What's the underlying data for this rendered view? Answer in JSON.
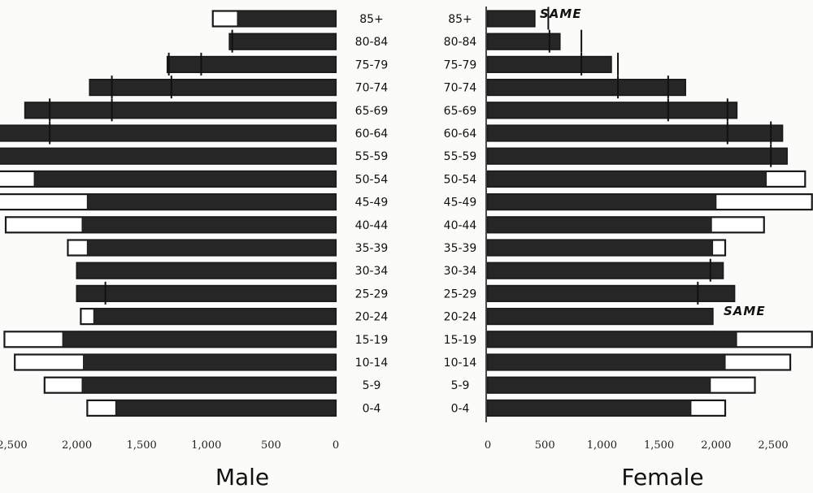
{
  "chart_data": [
    {
      "type": "bar",
      "title": "Male",
      "orientation": "horizontal",
      "direction": "leftward",
      "categories": [
        "85+",
        "80-84",
        "75-79",
        "70-74",
        "65-69",
        "60-64",
        "55-59",
        "50-54",
        "45-49",
        "40-44",
        "35-39",
        "30-34",
        "25-29",
        "20-24",
        "15-19",
        "10-14",
        "5-9",
        "0-4"
      ],
      "xticks": [
        "2,500",
        "2,000",
        "1,500",
        "1,000",
        "500",
        "0"
      ],
      "xlim": [
        0,
        2900
      ],
      "series": [
        {
          "style": "filled",
          "values": [
            760,
            820,
            1300,
            1900,
            2400,
            2650,
            2650,
            2330,
            1920,
            1960,
            1920,
            2000,
            2000,
            1870,
            2110,
            1950,
            1960,
            1700
          ]
        },
        {
          "style": "outline",
          "values": [
            950,
            820,
            1300,
            1900,
            2400,
            2650,
            2650,
            2860,
            2880,
            2550,
            2070,
            2000,
            2000,
            1970,
            2560,
            2480,
            2250,
            1920
          ]
        }
      ],
      "marker_values": [
        [],
        [
          800
        ],
        [
          1040,
          1290
        ],
        [
          1270,
          1730
        ],
        [
          1730,
          2210
        ],
        [
          2210
        ],
        [
          2620
        ],
        [],
        [],
        [],
        [],
        [],
        [
          1780
        ],
        [],
        [],
        [],
        [],
        []
      ]
    },
    {
      "type": "bar",
      "title": "Female",
      "orientation": "horizontal",
      "categories": [
        "85+",
        "80-84",
        "75-79",
        "70-74",
        "65-69",
        "60-64",
        "55-59",
        "50-54",
        "45-49",
        "40-44",
        "35-39",
        "30-34",
        "25-29",
        "20-24",
        "15-19",
        "10-14",
        "5-9",
        "0-4"
      ],
      "xticks": [
        "0",
        "500",
        "1,000",
        "1,500",
        "2,000",
        "2,500"
      ],
      "xlim": [
        0,
        2850
      ],
      "series": [
        {
          "style": "filled",
          "values": [
            410,
            630,
            1080,
            1730,
            2180,
            2580,
            2620,
            2440,
            2000,
            1960,
            1970,
            2060,
            2160,
            1970,
            2180,
            2080,
            1950,
            1780
          ]
        },
        {
          "style": "outline",
          "values": [
            410,
            630,
            1080,
            1730,
            2180,
            2580,
            2620,
            2780,
            2840,
            2420,
            2080,
            2060,
            2160,
            1970,
            2840,
            2650,
            2340,
            2080
          ]
        }
      ],
      "marker_values": [
        [
          530
        ],
        [
          540,
          820
        ],
        [
          820,
          1140
        ],
        [
          1140,
          1580
        ],
        [
          1580,
          2100
        ],
        [
          2100,
          2480
        ],
        [
          2480
        ],
        [],
        [],
        [],
        [],
        [
          1950
        ],
        [
          1840
        ],
        [],
        [],
        [],
        [],
        []
      ]
    }
  ],
  "annotations": {
    "female_85": "SAME",
    "female_20": "SAME"
  }
}
